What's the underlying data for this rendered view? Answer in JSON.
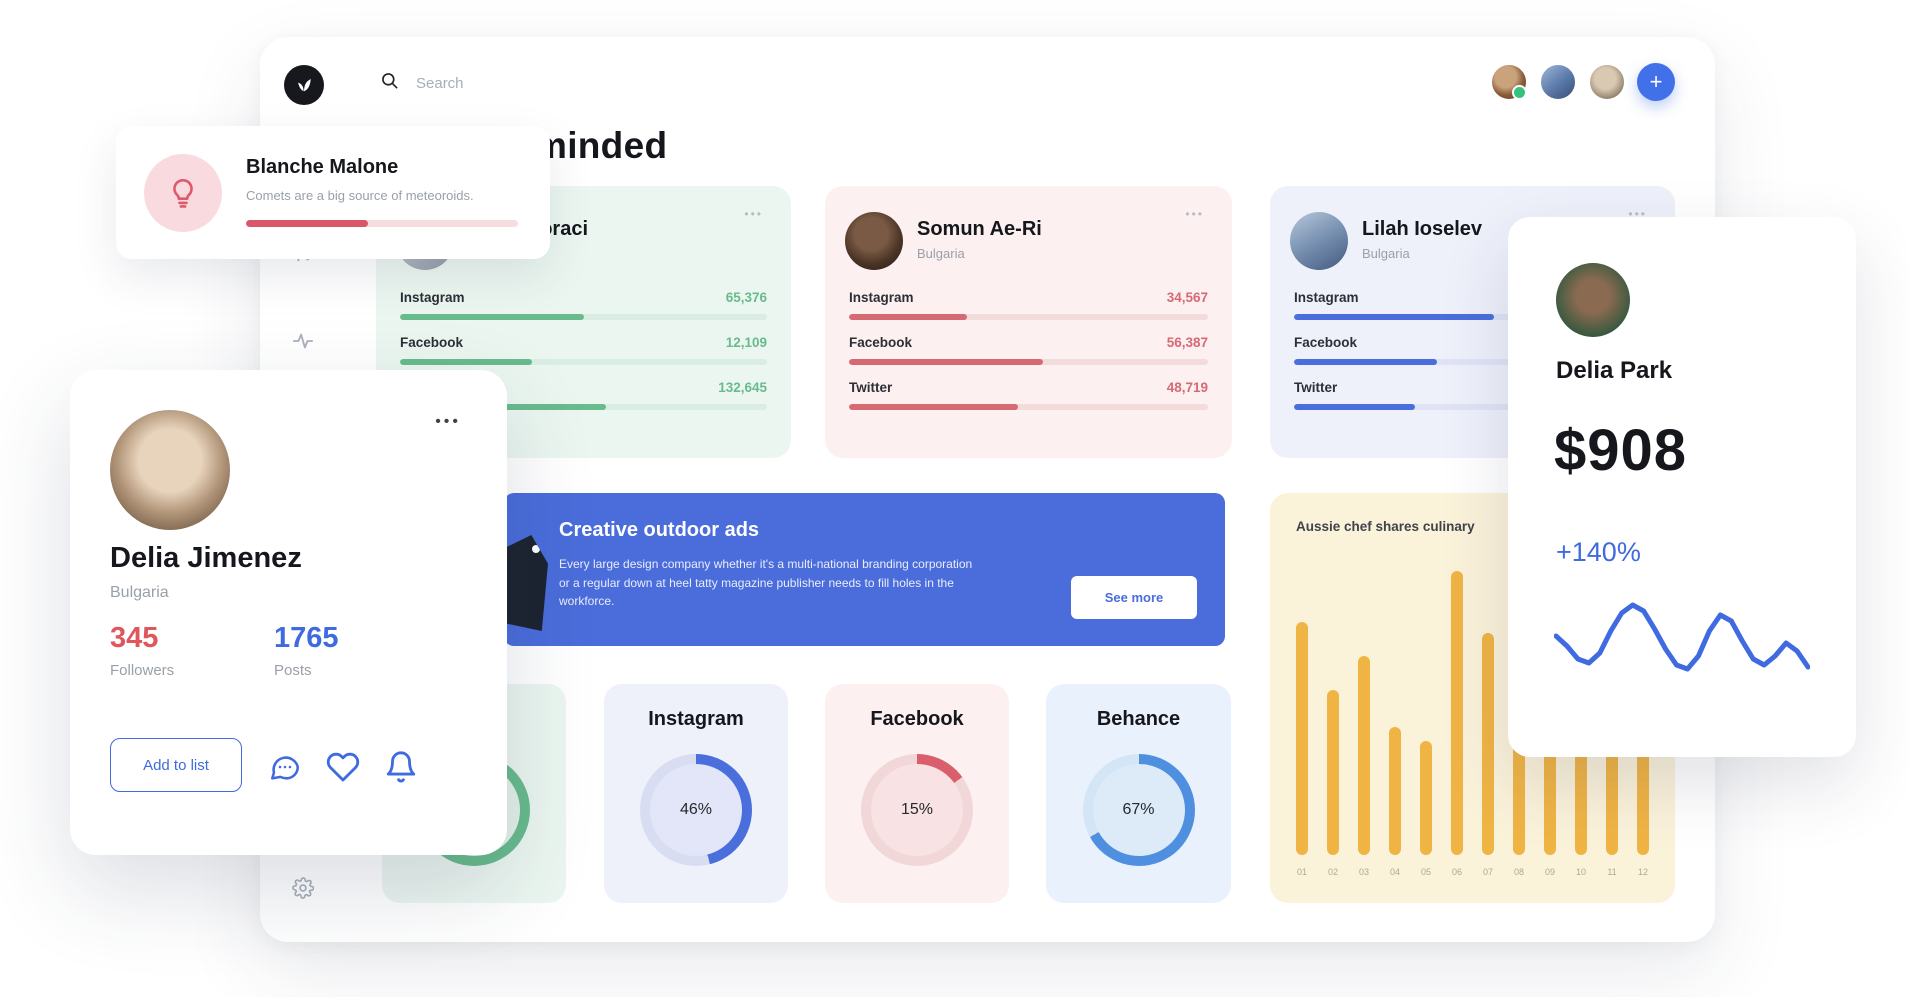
{
  "colors": {
    "accent_blue": "#3f6ae0",
    "accent_green": "#68bb8d",
    "accent_red": "#d95f6d",
    "accent_yellow": "#f0b445",
    "banner_blue": "#4a6ddb"
  },
  "topbar": {
    "search_placeholder": "Search",
    "add_button": "+"
  },
  "heading": "minded",
  "influencer_cards": [
    {
      "name": "goraci",
      "country": "",
      "menu": "•••",
      "rows": [
        {
          "label": "Instagram",
          "value": "65,376",
          "pct": 50
        },
        {
          "label": "Facebook",
          "value": "12,109",
          "pct": 36
        },
        {
          "label": "",
          "value": "132,645",
          "pct": 56
        }
      ]
    },
    {
      "name": "Somun Ae-Ri",
      "country": "Bulgaria",
      "menu": "•••",
      "rows": [
        {
          "label": "Instagram",
          "value": "34,567",
          "pct": 33
        },
        {
          "label": "Facebook",
          "value": "56,387",
          "pct": 54
        },
        {
          "label": "Twitter",
          "value": "48,719",
          "pct": 47
        }
      ]
    },
    {
      "name": "Lilah Ioselev",
      "country": "Bulgaria",
      "menu": "•••",
      "rows": [
        {
          "label": "Instagram",
          "value": "",
          "pct": 56
        },
        {
          "label": "Facebook",
          "value": "",
          "pct": 40
        },
        {
          "label": "Twitter",
          "value": "",
          "pct": 34
        }
      ]
    }
  ],
  "banner": {
    "title": "Creative outdoor ads",
    "body": "Every large design company whether it's a multi-national branding corporation or a regular down at heel tatty magazine publisher needs to fill holes in the workforce.",
    "button": "See more"
  },
  "percent_cards": [
    {
      "label": "",
      "pct": 80,
      "text": ""
    },
    {
      "label": "Instagram",
      "pct": 46,
      "text": "46%"
    },
    {
      "label": "Facebook",
      "pct": 15,
      "text": "15%"
    },
    {
      "label": "Behance",
      "pct": 67,
      "text": "67%"
    }
  ],
  "chart_data": {
    "type": "bar",
    "title": "Aussie chef shares culinary",
    "categories": [
      "01",
      "02",
      "03",
      "04",
      "05",
      "06",
      "07",
      "08",
      "09",
      "10",
      "11",
      "12"
    ],
    "values": [
      82,
      58,
      70,
      45,
      40,
      100,
      78,
      48,
      62,
      66,
      52,
      60
    ]
  },
  "tip_card": {
    "name": "Blanche Malone",
    "text": "Comets are a big source of meteoroids.",
    "progress_pct": 45
  },
  "profile_card": {
    "name": "Delia Jimenez",
    "country": "Bulgaria",
    "menu": "•••",
    "followers_value": "345",
    "followers_label": "Followers",
    "posts_value": "1765",
    "posts_label": "Posts",
    "add_button": "Add to list"
  },
  "earnings_card": {
    "name": "Delia Park",
    "amount": "$908",
    "change": "+140%",
    "trend": [
      55,
      45,
      32,
      28,
      38,
      60,
      78,
      86,
      80,
      62,
      42,
      26,
      22,
      35,
      60,
      76,
      70,
      50,
      32,
      26,
      35,
      48,
      40,
      24
    ]
  }
}
